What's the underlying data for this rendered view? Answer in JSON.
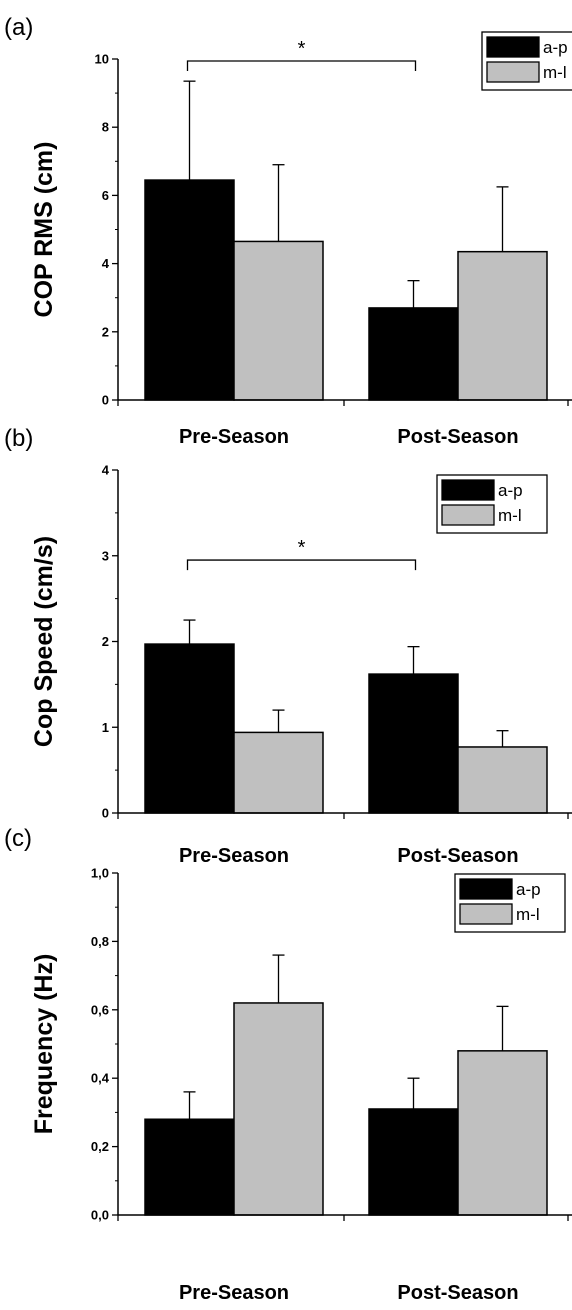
{
  "figure": {
    "colors": {
      "a-p": "#000000",
      "m-l": "#c0c0c0"
    }
  },
  "chart_data": [
    {
      "type": "bar",
      "panel_label": "(a)",
      "ylabel": "COP RMS (cm)",
      "categories": [
        "Pre-Season",
        "Post-Season"
      ],
      "ylim": [
        0,
        10
      ],
      "yticks": [
        "0",
        "2",
        "4",
        "6",
        "8",
        "10"
      ],
      "legend_position": "top-right",
      "series": [
        {
          "name": "a-p",
          "values": [
            6.45,
            2.7
          ],
          "errors": [
            2.9,
            0.8
          ]
        },
        {
          "name": "m-l",
          "values": [
            4.65,
            4.35
          ],
          "errors": [
            2.25,
            1.9
          ]
        }
      ],
      "significance": {
        "label": "*",
        "between": "a-p Pre-Season vs a-p Post-Season"
      }
    },
    {
      "type": "bar",
      "panel_label": "(b)",
      "ylabel": "Cop Speed (cm/s)",
      "categories": [
        "Pre-Season",
        "Post-Season"
      ],
      "ylim": [
        0,
        4
      ],
      "yticks": [
        "0",
        "1",
        "2",
        "3",
        "4"
      ],
      "legend_position": "top-right",
      "series": [
        {
          "name": "a-p",
          "values": [
            1.97,
            1.62
          ],
          "errors": [
            0.28,
            0.32
          ]
        },
        {
          "name": "m-l",
          "values": [
            0.94,
            0.77
          ],
          "errors": [
            0.26,
            0.19
          ]
        }
      ],
      "significance": {
        "label": "*",
        "between": "a-p Pre-Season vs a-p Post-Season"
      }
    },
    {
      "type": "bar",
      "panel_label": "(c)",
      "ylabel": "Frequency (Hz)",
      "categories": [
        "Pre-Season",
        "Post-Season"
      ],
      "ylim": [
        0,
        1
      ],
      "yticks": [
        "0,0",
        "0,2",
        "0,4",
        "0,6",
        "0,8",
        "1,0"
      ],
      "legend_position": "top-right",
      "series": [
        {
          "name": "a-p",
          "values": [
            0.28,
            0.31
          ],
          "errors": [
            0.08,
            0.09
          ]
        },
        {
          "name": "m-l",
          "values": [
            0.62,
            0.48
          ],
          "errors": [
            0.14,
            0.13
          ]
        }
      ],
      "significance": null
    }
  ]
}
